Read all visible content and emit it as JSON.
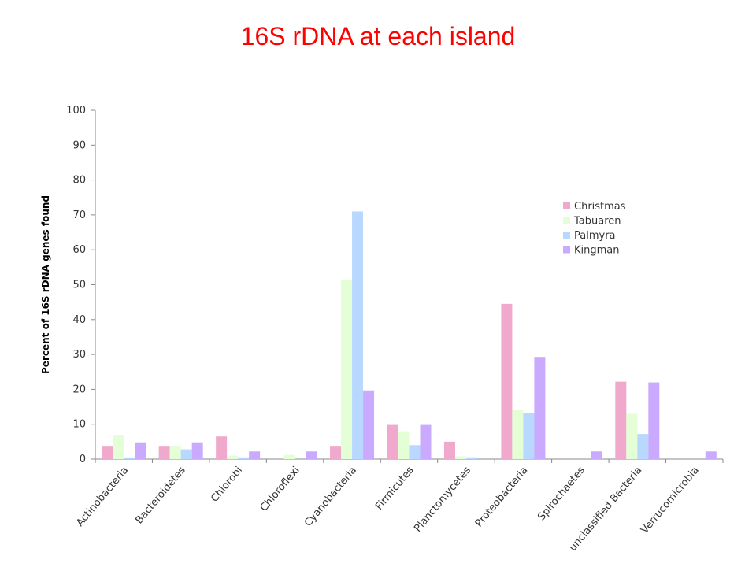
{
  "title": "16S rDNA at each island",
  "chart_data": {
    "type": "bar",
    "title": "16S rDNA at each island",
    "ylabel": "Percent of 16S rDNA genes found",
    "xlabel": "",
    "ylim": [
      0,
      100
    ],
    "yticks": [
      0,
      10,
      20,
      30,
      40,
      50,
      60,
      70,
      80,
      90,
      100
    ],
    "grid": false,
    "legend_position": "right",
    "categories": [
      "Actinobacteria",
      "Bacteroidetes",
      "Chlorobi",
      "Chloroflexi",
      "Cyanobacteria",
      "Firmicutes",
      "Planctomycetes",
      "Proteobacteria",
      "Spirochaetes",
      "unclassified Bacteria",
      "Verrucomicrobia"
    ],
    "series": [
      {
        "name": "Christmas",
        "color": "#f0a8cc",
        "values": [
          3.8,
          3.8,
          6.5,
          0,
          3.8,
          9.8,
          5.0,
          44.5,
          0,
          22.2,
          0
        ]
      },
      {
        "name": "Tabuaren",
        "color": "#e4ffd6",
        "values": [
          7.0,
          3.8,
          1.0,
          1.2,
          51.5,
          8.0,
          0.8,
          14.0,
          0,
          13.0,
          0
        ]
      },
      {
        "name": "Palmyra",
        "color": "#b8d8ff",
        "values": [
          0.5,
          2.8,
          0.5,
          0,
          71.0,
          4.0,
          0.5,
          13.2,
          0,
          7.2,
          0
        ]
      },
      {
        "name": "Kingman",
        "color": "#c9aaff",
        "values": [
          4.8,
          4.8,
          2.2,
          2.2,
          19.7,
          9.8,
          0,
          29.3,
          2.2,
          22.0,
          2.2
        ]
      }
    ]
  }
}
